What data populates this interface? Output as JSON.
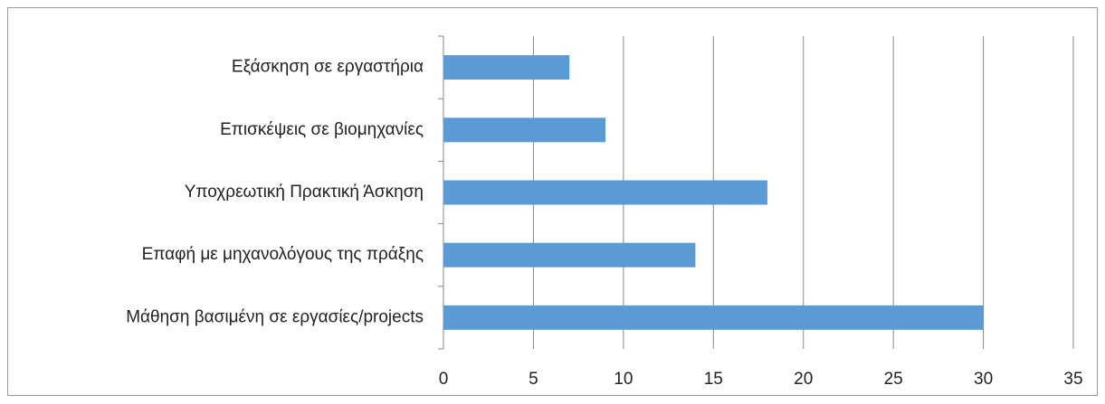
{
  "chart_data": {
    "type": "bar",
    "orientation": "horizontal",
    "categories": [
      "Εξάσκηση σε εργαστήρια",
      "Επισκέψεις σε βιομηχανίες",
      "Υποχρεωτική Πρακτική Άσκηση",
      "Επαφή με μηχανολόγους της πράξης",
      "Μάθηση βασιμένη σε εργασίες/projects"
    ],
    "values": [
      7,
      9,
      18,
      14,
      30
    ],
    "color": "#5b9bd5",
    "xlim": [
      0,
      35
    ],
    "xticks": [
      0,
      5,
      10,
      15,
      20,
      25,
      30,
      35
    ],
    "grid": true
  }
}
